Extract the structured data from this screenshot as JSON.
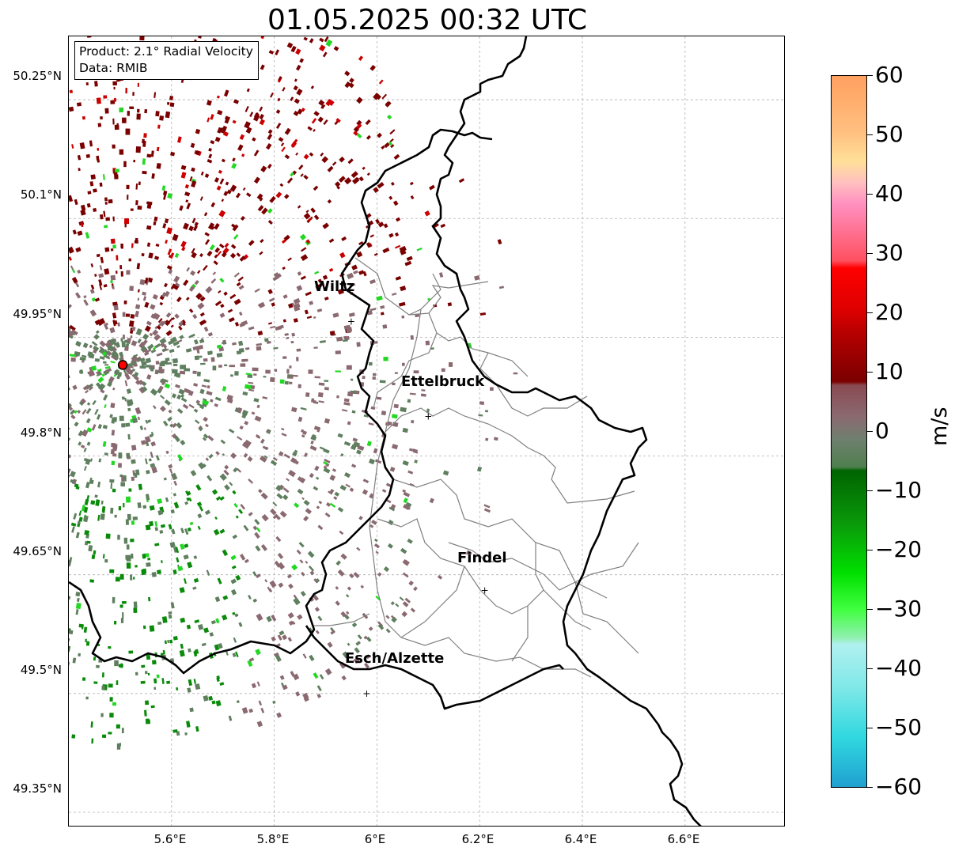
{
  "title": "01.05.2025 00:32 UTC",
  "info": {
    "product": "Product: 2.1° Radial Velocity",
    "source": "Data: RMIB"
  },
  "lat_ticks": [
    "50.25°N",
    "50.1°N",
    "49.95°N",
    "49.8°N",
    "49.65°N",
    "49.5°N",
    "49.35°N"
  ],
  "lon_ticks": [
    "5.6°E",
    "5.8°E",
    "6°E",
    "6.2°E",
    "6.4°E",
    "6.6°E"
  ],
  "places": [
    {
      "name": "Wiltz",
      "lon": 5.95,
      "lat": 49.97
    },
    {
      "name": "Ettelbruck",
      "lon": 6.1,
      "lat": 49.85
    },
    {
      "name": "Findel",
      "lon": 6.21,
      "lat": 49.63
    },
    {
      "name": "Esch/Alzette",
      "lon": 5.98,
      "lat": 49.5
    }
  ],
  "radar_site": {
    "lon": 5.505,
    "lat": 49.915
  },
  "colorbar": {
    "unit": "m/s",
    "min": -60,
    "max": 60,
    "ticks": [
      "60",
      "50",
      "40",
      "30",
      "20",
      "10",
      "0",
      "−10",
      "−20",
      "−30",
      "−40",
      "−50",
      "−60"
    ]
  },
  "colors": {
    "receding_strong": "#7a0000",
    "receding": "#cc0000",
    "near_zero_pos": "#8a6a70",
    "near_zero_neg": "#5f7f5f",
    "approaching": "#0a8a0a",
    "approaching_strong": "#22d822"
  }
}
